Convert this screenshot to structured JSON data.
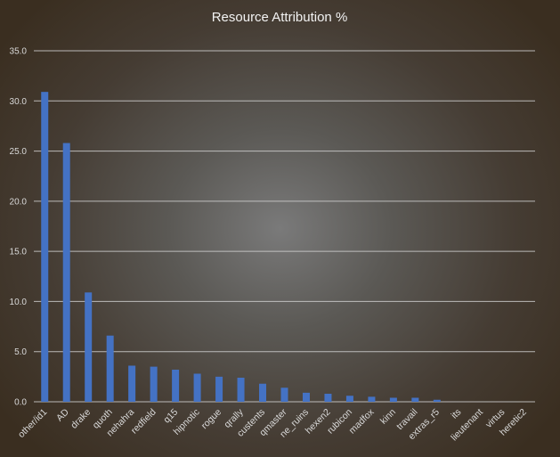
{
  "chart_data": {
    "type": "bar",
    "title": "Resource Attribution %",
    "xlabel": "",
    "ylabel": "",
    "ylim": [
      0,
      35
    ],
    "yticks": [
      "0.0",
      "5.0",
      "10.0",
      "15.0",
      "20.0",
      "25.0",
      "30.0",
      "35.0"
    ],
    "grid": true,
    "legend": "none",
    "bar_color": "#4472c4",
    "categories": [
      "other/id1",
      "AD",
      "drake",
      "quoth",
      "nehahra",
      "redfield",
      "q15",
      "hipnotic",
      "rogue",
      "qrally",
      "custents",
      "qmaster",
      "ne_ruins",
      "hexen2",
      "rubicon",
      "madfox",
      "kinn",
      "travail",
      "extras_r5",
      "its",
      "lieutenant",
      "virtus",
      "heretic2"
    ],
    "values": [
      30.9,
      25.8,
      10.9,
      6.6,
      3.6,
      3.5,
      3.2,
      2.8,
      2.5,
      2.4,
      1.8,
      1.4,
      0.9,
      0.8,
      0.6,
      0.5,
      0.4,
      0.4,
      0.2,
      0.0,
      0.0,
      0.0,
      0.0
    ]
  }
}
